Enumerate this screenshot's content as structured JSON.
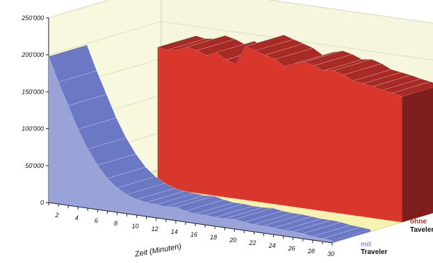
{
  "chart_data": {
    "type": "area",
    "subtype": "3d-area",
    "xlabel": "Zeit (Minuten)",
    "ylabel": "",
    "ylim": [
      0,
      250000
    ],
    "y_ticks": [
      "0",
      "50'000",
      "100'000",
      "150'000",
      "200'000",
      "250'000"
    ],
    "x": [
      1,
      2,
      3,
      4,
      5,
      6,
      7,
      8,
      9,
      10,
      11,
      12,
      13,
      14,
      15,
      16,
      17,
      18,
      19,
      20,
      21,
      22,
      23,
      24,
      25,
      26,
      27,
      28,
      29,
      30
    ],
    "x_tick_labels": [
      "2",
      "4",
      "6",
      "8",
      "10",
      "12",
      "14",
      "16",
      "18",
      "20",
      "22",
      "24",
      "26",
      "28",
      "30"
    ],
    "grid": true,
    "series": [
      {
        "label_line1": "mit",
        "label_line2": "Traveler",
        "label_color": "#8f96cf",
        "front_color": "#9aa3d8",
        "top_color": "#6b78c4",
        "values": [
          198000,
          165000,
          135000,
          105000,
          80000,
          60000,
          44000,
          33000,
          26000,
          21000,
          19000,
          18000,
          17000,
          18000,
          15000,
          13000,
          13000,
          12000,
          12000,
          13000,
          11000,
          10000,
          10000,
          9000,
          8000,
          8000,
          7000,
          5000,
          4000,
          3000
        ]
      },
      {
        "label_line1": "ohne",
        "label_line2": "Taveler",
        "label_color": "#cc2a20",
        "front_color": "#d9372b",
        "top_color": "#a82a25",
        "side_color": "#7e1f1d",
        "values": [
          198000,
          198000,
          196000,
          195000,
          190000,
          188000,
          190000,
          196000,
          193000,
          188000,
          194000,
          186000,
          182000,
          208000,
          204000,
          200000,
          196000,
          188000,
          194000,
          198000,
          195000,
          190000,
          192000,
          188000,
          182000,
          180000,
          178000,
          175000,
          173000,
          170000
        ]
      }
    ]
  }
}
